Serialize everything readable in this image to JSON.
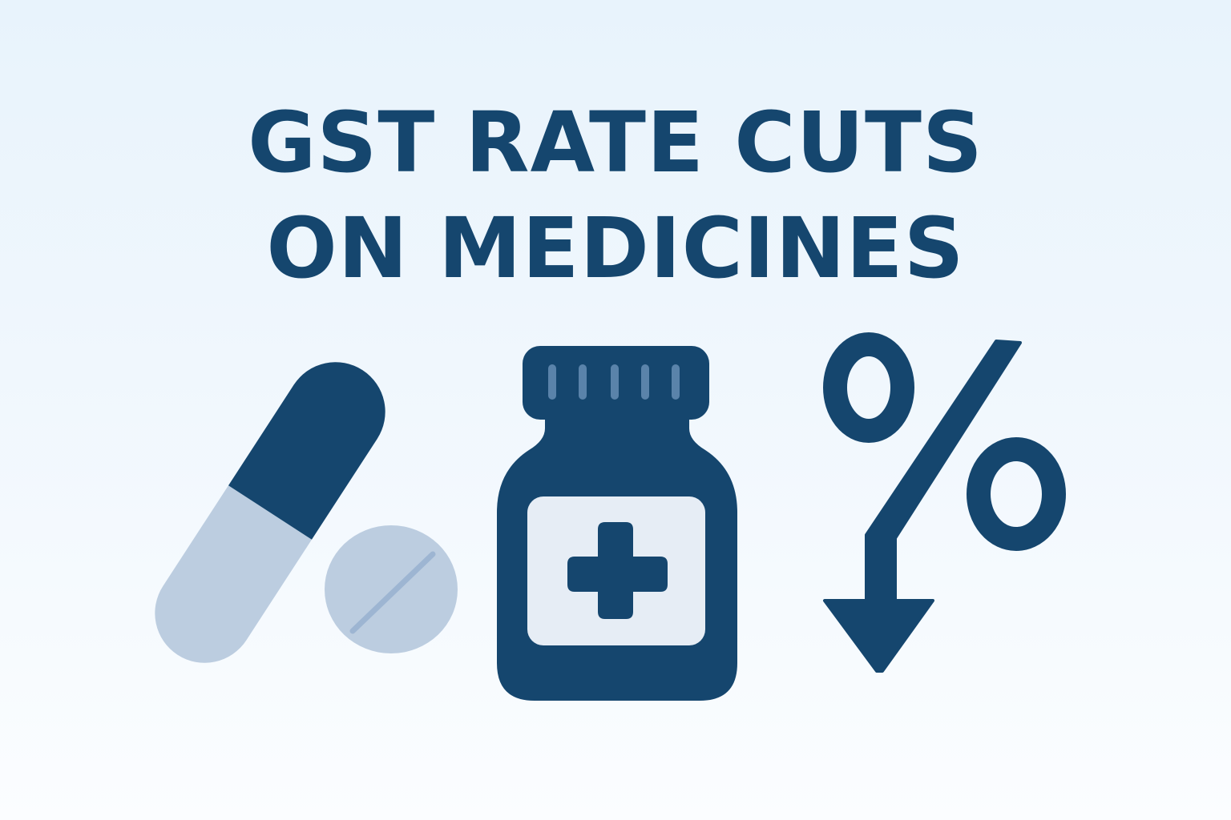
{
  "headline": {
    "line1": "GST RATE CUTS",
    "line2": "ON MEDICINES"
  },
  "icons": {
    "capsule": "capsule-icon",
    "tablet": "tablet-icon",
    "bottle": "medicine-bottle-icon",
    "cross": "medical-cross-icon",
    "percent": "percent-icon",
    "arrow": "down-arrow-icon"
  },
  "colors": {
    "navy": "#15466e",
    "light_blue": "#bccde0",
    "label_bg": "#e6edf5",
    "tablet_score": "#9db5d2",
    "cap_ribs": "#5a83aa",
    "background_top": "#e8f3fc",
    "background_bottom": "#fbfdff"
  }
}
